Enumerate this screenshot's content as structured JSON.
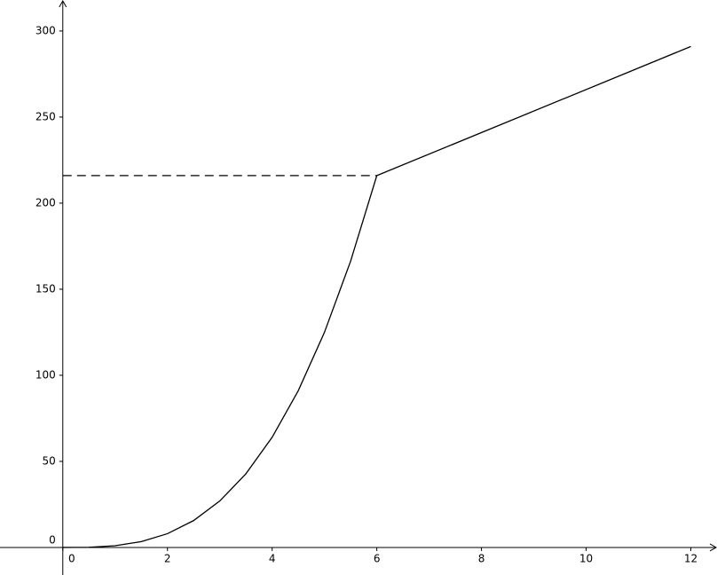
{
  "chart_data": {
    "type": "line",
    "series": [
      {
        "color": "#000000",
        "x": [
          0,
          0.5,
          1,
          1.5,
          2,
          2.5,
          3,
          3.5,
          4,
          4.5,
          5,
          5.5,
          6,
          12
        ],
        "values": [
          0,
          0.125,
          1,
          3.375,
          8,
          15.625,
          27,
          42.875,
          64,
          91.125,
          125,
          166.375,
          216,
          291
        ]
      },
      {
        "color": "#000000",
        "dashed": true,
        "x": [
          0,
          6
        ],
        "values": [
          216,
          216
        ]
      }
    ],
    "xlim": [
      -1.2,
      12.5
    ],
    "ylim": [
      -16,
      318
    ],
    "xticks": [
      0,
      2,
      4,
      6,
      8,
      10,
      12
    ],
    "yticks": [
      0,
      50,
      100,
      150,
      200,
      250,
      300
    ],
    "grid": false
  }
}
